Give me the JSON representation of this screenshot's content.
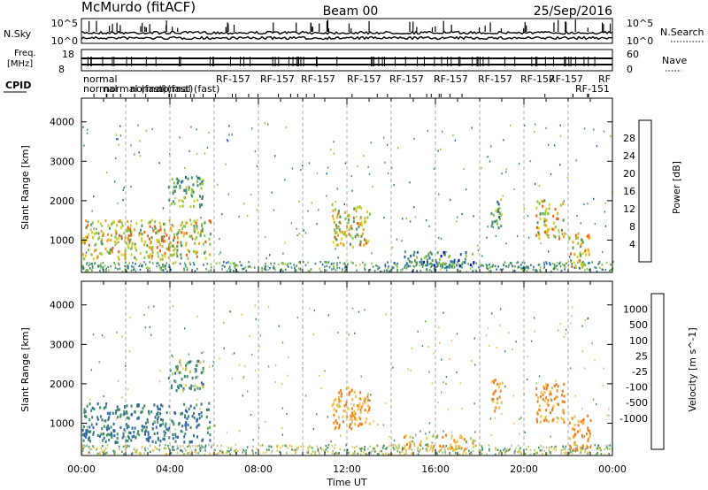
{
  "header": {
    "station": "McMurdo (fitACF)",
    "beam": "Beam 00",
    "date": "25/Sep/2016"
  },
  "panels": {
    "sky": {
      "left_label": "N.Sky",
      "right_label": "N.Search",
      "left_ticks": [
        "10^5",
        "10^0"
      ],
      "right_ticks": [
        "10^5",
        "10^0"
      ]
    },
    "freq": {
      "left_label_1": "Freq.",
      "left_label_2": "[MHz]",
      "right_label": "Nave",
      "left_ticks": [
        "18",
        "8"
      ],
      "right_ticks": [
        "60",
        "0"
      ]
    },
    "cpid": {
      "label": "CPID",
      "names": [
        "normal",
        "normal",
        "normal (fast)",
        "normal (fast)",
        "normal (fast)",
        "RF-157",
        "RF-157",
        "RF-157",
        "RF-157",
        "RF-157",
        "RF-157",
        "RF-157",
        "RF-157",
        "RF-157",
        "RF-151",
        "RF"
      ]
    }
  },
  "chart_data": [
    {
      "type": "heatmap",
      "title": "",
      "ylabel": "Slant Range [km]",
      "xlabel": "Time UT",
      "xlim": [
        "00:00",
        "24:00"
      ],
      "ylim": [
        180,
        4600
      ],
      "y_ticks": [
        1000,
        2000,
        3000,
        4000
      ],
      "colorbar": {
        "label": "Power [dB]",
        "range": [
          0,
          32
        ],
        "ticks": [
          4,
          8,
          12,
          16,
          20,
          24,
          28
        ],
        "colors": [
          "#0000e0",
          "#2060b0",
          "#3a8a7a",
          "#4e9a5a",
          "#8ac83c",
          "#d8d020",
          "#f0a020",
          "#f06010",
          "#e01010"
        ]
      },
      "echo_regions": [
        {
          "t_start": 0.0,
          "t_end": 5.8,
          "range_low": 500,
          "range_high": 1500,
          "level": 20
        },
        {
          "t_start": 3.9,
          "t_end": 5.5,
          "range_low": 1800,
          "range_high": 2600,
          "level": 13
        },
        {
          "t_start": 11.3,
          "t_end": 13.0,
          "range_low": 800,
          "range_high": 1900,
          "level": 19
        },
        {
          "t_start": 14.5,
          "t_end": 17.8,
          "range_low": 300,
          "range_high": 700,
          "level": 9
        },
        {
          "t_start": 18.5,
          "t_end": 19.0,
          "range_low": 1300,
          "range_high": 2100,
          "level": 11
        },
        {
          "t_start": 20.5,
          "t_end": 21.8,
          "range_low": 1000,
          "range_high": 2000,
          "level": 21
        },
        {
          "t_start": 22.0,
          "t_end": 23.0,
          "range_low": 300,
          "range_high": 1200,
          "level": 20
        }
      ]
    },
    {
      "type": "heatmap",
      "title": "",
      "ylabel": "Slant Range [km]",
      "xlabel": "Time UT",
      "xlim": [
        "00:00",
        "24:00"
      ],
      "ylim": [
        180,
        4600
      ],
      "y_ticks": [
        1000,
        2000,
        3000,
        4000
      ],
      "colorbar": {
        "label": "Velocity [m s^-1]",
        "ticks": [
          "1000",
          "500",
          "100",
          "25",
          "-25",
          "-100",
          "-500",
          "-1000"
        ],
        "colors": [
          "#1a3aa0",
          "#3068a8",
          "#3e8a6a",
          "#5ab848",
          "#9ad45a",
          "#bdbdbd",
          "#f0c040",
          "#f08020",
          "#f04010",
          "#e00000"
        ]
      },
      "echo_regions": [
        {
          "t_start": 0.0,
          "t_end": 5.8,
          "range_low": 500,
          "range_high": 1500,
          "velocity": 300
        },
        {
          "t_start": 3.9,
          "t_end": 5.5,
          "range_low": 1800,
          "range_high": 2600,
          "velocity": 100
        },
        {
          "t_start": 11.3,
          "t_end": 13.0,
          "range_low": 800,
          "range_high": 1900,
          "velocity": -300
        },
        {
          "t_start": 14.5,
          "t_end": 17.8,
          "range_low": 300,
          "range_high": 700,
          "velocity": -200
        },
        {
          "t_start": 18.5,
          "t_end": 19.0,
          "range_low": 1300,
          "range_high": 2100,
          "velocity": -400
        },
        {
          "t_start": 20.5,
          "t_end": 21.8,
          "range_low": 1000,
          "range_high": 2000,
          "velocity": -400
        },
        {
          "t_start": 22.0,
          "t_end": 23.0,
          "range_low": 300,
          "range_high": 1200,
          "velocity": -400
        }
      ]
    }
  ],
  "x_ticks": [
    "00:00",
    "04:00",
    "08:00",
    "12:00",
    "16:00",
    "20:00",
    "00:00"
  ],
  "x_label": "Time UT"
}
